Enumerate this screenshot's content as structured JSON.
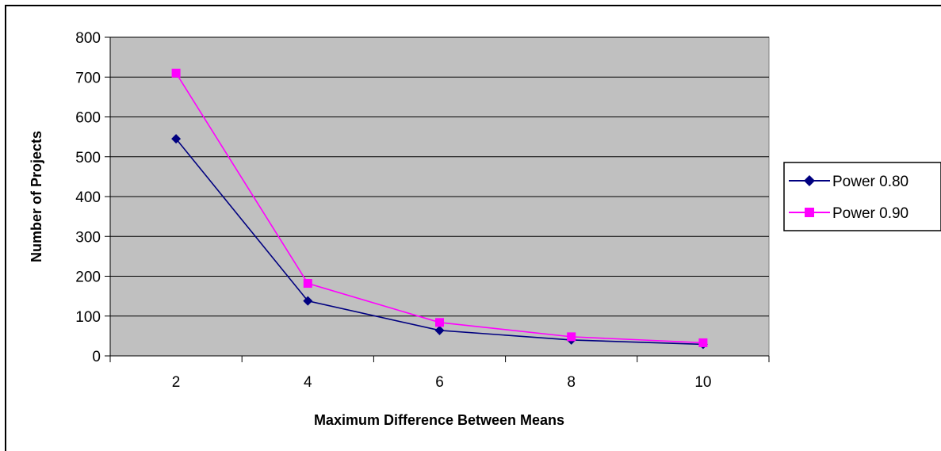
{
  "chart_data": {
    "type": "line",
    "title": "",
    "xlabel": "Maximum Difference Between Means",
    "ylabel": "Number of Projects",
    "categories": [
      "2",
      "4",
      "6",
      "8",
      "10"
    ],
    "ylim": [
      0,
      800
    ],
    "yticks": [
      0,
      100,
      200,
      300,
      400,
      500,
      600,
      700,
      800
    ],
    "grid": true,
    "plot_background": "#c0c0c0",
    "legend_position": "right",
    "series": [
      {
        "name": "Power 0.80",
        "color": "#000080",
        "marker": "diamond",
        "values": [
          545,
          138,
          64,
          40,
          29
        ]
      },
      {
        "name": "Power 0.90",
        "color": "#ff00ff",
        "marker": "square",
        "values": [
          710,
          182,
          84,
          48,
          33
        ]
      }
    ]
  }
}
